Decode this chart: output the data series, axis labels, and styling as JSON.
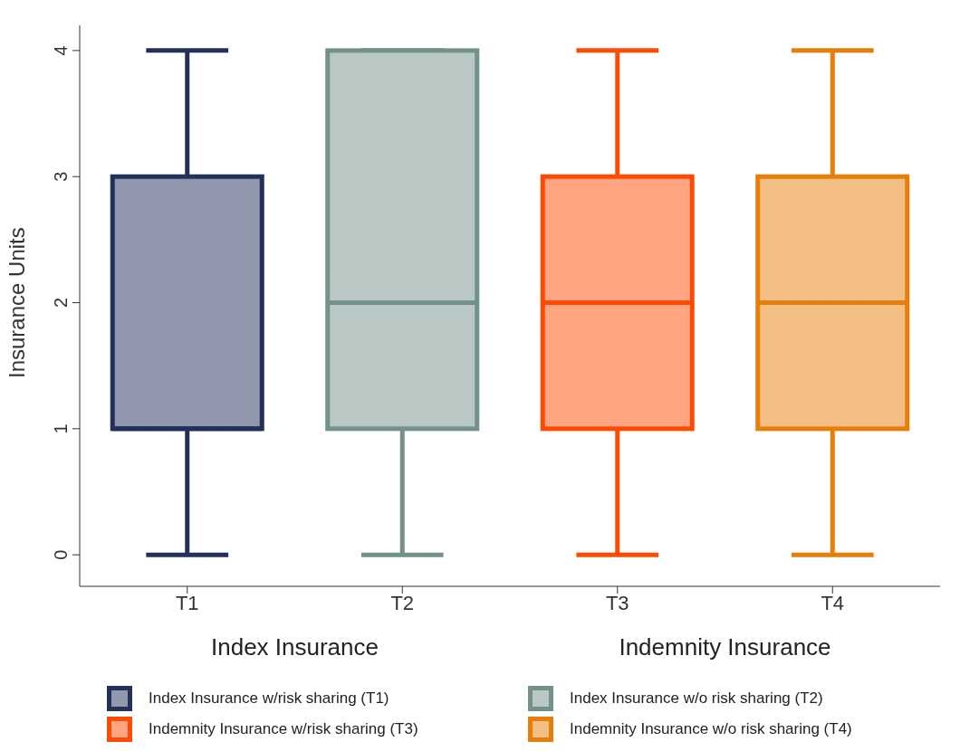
{
  "chart_data": {
    "type": "box",
    "ylabel": "Insurance Units",
    "categories": [
      "T1",
      "T2",
      "T3",
      "T4"
    ],
    "ylim": [
      -0.25,
      4.2
    ],
    "yticks": [
      0,
      1,
      2,
      3,
      4
    ],
    "legend": "bottom",
    "annotations": [
      "Index Insurance",
      "Indemnity Insurance"
    ],
    "series": [
      {
        "name": "Index Insurance w/risk sharing (T1)",
        "color": "#23305a",
        "boxes": [
          {
            "low": 0,
            "q1": 1,
            "median": 1,
            "q3": 3,
            "high": 4
          },
          null,
          null,
          null
        ]
      },
      {
        "name": "Index Insurance w/o risk sharing (T2)",
        "color": "#72918a",
        "boxes": [
          null,
          {
            "low": 0,
            "q1": 1,
            "median": 2,
            "q3": 4,
            "high": 4
          },
          null,
          null
        ]
      },
      {
        "name": "Indemnity Insurance w/risk sharing (T3)",
        "color": "#fe4b04",
        "boxes": [
          null,
          null,
          {
            "low": 0,
            "q1": 1,
            "median": 2,
            "q3": 3,
            "high": 4
          },
          null
        ]
      },
      {
        "name": "Indemnity Insurance w/o risk sharing (T4)",
        "color": "#e67f0a",
        "boxes": [
          null,
          null,
          null,
          {
            "low": 0,
            "q1": 1,
            "median": 2,
            "q3": 3,
            "high": 4
          }
        ]
      }
    ]
  }
}
